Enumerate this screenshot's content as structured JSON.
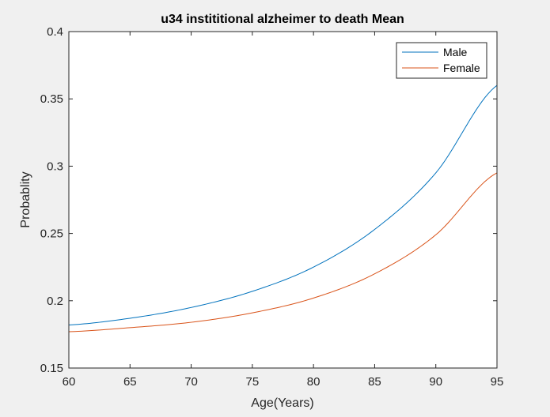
{
  "chart_data": {
    "type": "line",
    "title": "u34 instititional alzheimer to  death Mean",
    "xlabel": "Age(Years)",
    "ylabel": "Probablity",
    "xlim": [
      60,
      95
    ],
    "ylim": [
      0.15,
      0.4
    ],
    "xticks": [
      "60",
      "65",
      "70",
      "75",
      "80",
      "85",
      "90",
      "95"
    ],
    "yticks": [
      "0.15",
      "0.2",
      "0.25",
      "0.3",
      "0.35",
      "0.4"
    ],
    "grid": false,
    "legend_position": "top-right",
    "x": [
      60,
      65,
      70,
      75,
      80,
      85,
      90,
      95
    ],
    "series": [
      {
        "name": "Male",
        "color": "#0072bd",
        "values": [
          0.182,
          0.187,
          0.195,
          0.207,
          0.225,
          0.253,
          0.295,
          0.36
        ]
      },
      {
        "name": "Female",
        "color": "#d95319",
        "values": [
          0.177,
          0.18,
          0.184,
          0.191,
          0.202,
          0.22,
          0.249,
          0.295
        ]
      }
    ]
  }
}
